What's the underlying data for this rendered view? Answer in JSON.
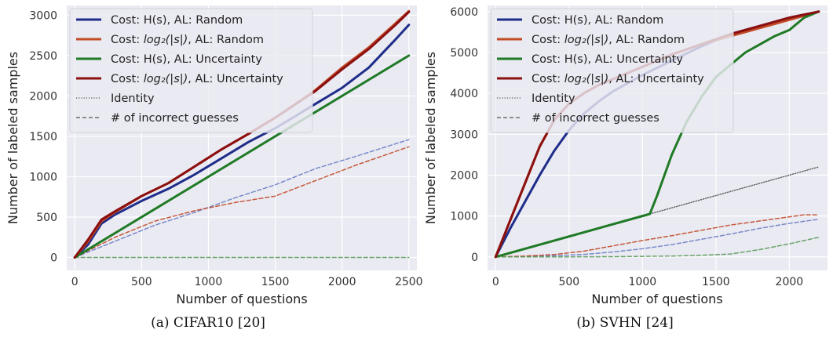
{
  "chart_data": [
    {
      "type": "line",
      "caption": "(a) CIFAR10 [20]",
      "xlabel": "Number of questions",
      "ylabel": "Number of labeled samples",
      "xlim": [
        -60,
        2560
      ],
      "ylim": [
        -160,
        3120
      ],
      "xticks": [
        0,
        500,
        1000,
        1500,
        2000,
        2500
      ],
      "yticks": [
        0,
        500,
        1000,
        1500,
        2000,
        2500,
        3000
      ],
      "grid": true,
      "legend_position": "upper-left",
      "legend": [
        {
          "pre": "Cost: H(s), AL: Random",
          "math": "",
          "post": "",
          "color": "#1f2d8a",
          "style": "solid"
        },
        {
          "pre": "Cost: ",
          "math": "log₂(|s|)",
          "post": ", AL: Random",
          "color": "#c14a27",
          "style": "solid"
        },
        {
          "pre": "Cost: H(s), AL: Uncertainty",
          "math": "",
          "post": "",
          "color": "#1f7a25",
          "style": "solid"
        },
        {
          "pre": "Cost: ",
          "math": "log₂(|s|)",
          "post": ", AL: Uncertainty",
          "color": "#8b0f0f",
          "style": "solid"
        },
        {
          "pre": "Identity",
          "math": "",
          "post": "",
          "color": "#555555",
          "style": "dotted"
        },
        {
          "pre": "# of incorrect guesses",
          "math": "",
          "post": "",
          "color": "#555555",
          "style": "dashed"
        }
      ],
      "series": [
        {
          "color": "#1f2d8a",
          "style": "solid",
          "x": [
            0,
            100,
            200,
            300,
            500,
            700,
            900,
            1100,
            1300,
            1500,
            1800,
            2000,
            2200,
            2400,
            2500
          ],
          "y": [
            0,
            160,
            420,
            530,
            700,
            850,
            1030,
            1230,
            1430,
            1600,
            1900,
            2100,
            2350,
            2700,
            2880
          ]
        },
        {
          "color": "#c14a27",
          "style": "solid",
          "x": [
            0,
            100,
            200,
            300,
            500,
            700,
            900,
            1100,
            1300,
            1500,
            1800,
            2000,
            2200,
            2400,
            2500
          ],
          "y": [
            0,
            200,
            450,
            560,
            760,
            920,
            1130,
            1340,
            1530,
            1730,
            2070,
            2350,
            2600,
            2900,
            3050
          ]
        },
        {
          "color": "#1f7a25",
          "style": "solid",
          "x": [
            0,
            2500
          ],
          "y": [
            0,
            2500
          ]
        },
        {
          "color": "#8b0f0f",
          "style": "solid",
          "x": [
            0,
            100,
            200,
            300,
            500,
            700,
            900,
            1100,
            1300,
            1500,
            1800,
            2000,
            2200,
            2400,
            2500
          ],
          "y": [
            0,
            220,
            470,
            570,
            760,
            920,
            1130,
            1340,
            1530,
            1730,
            2060,
            2330,
            2580,
            2880,
            3040
          ]
        },
        {
          "color": "#6b7fc4",
          "style": "dashed",
          "x": [
            0,
            300,
            600,
            900,
            1200,
            1500,
            1800,
            2100,
            2500
          ],
          "y": [
            0,
            200,
            400,
            560,
            740,
            900,
            1100,
            1250,
            1460
          ]
        },
        {
          "color": "#c14a27",
          "style": "dashed",
          "x": [
            0,
            300,
            600,
            900,
            1200,
            1500,
            1800,
            2100,
            2500
          ],
          "y": [
            0,
            250,
            450,
            580,
            680,
            760,
            950,
            1140,
            1370
          ]
        },
        {
          "color": "#5a9a5a",
          "style": "dashed",
          "x": [
            0,
            2500
          ],
          "y": [
            0,
            0
          ]
        }
      ]
    },
    {
      "type": "line",
      "caption": "(b) SVHN [24]",
      "xlabel": "Number of questions",
      "ylabel": "Number of labeled samples",
      "xlim": [
        -55,
        2260
      ],
      "ylim": [
        -330,
        6150
      ],
      "xticks": [
        0,
        500,
        1000,
        1500,
        2000
      ],
      "yticks": [
        0,
        1000,
        2000,
        3000,
        4000,
        5000,
        6000
      ],
      "grid": true,
      "legend_position": "upper-left",
      "legend": [
        {
          "pre": "Cost: H(s), AL: Random",
          "math": "",
          "post": "",
          "color": "#1f2d8a",
          "style": "solid"
        },
        {
          "pre": "Cost: ",
          "math": "log₂(|s|)",
          "post": ", AL: Random",
          "color": "#c14a27",
          "style": "solid"
        },
        {
          "pre": "Cost: H(s), AL: Uncertainty",
          "math": "",
          "post": "",
          "color": "#1f7a25",
          "style": "solid"
        },
        {
          "pre": "Cost: ",
          "math": "log₂(|s|)",
          "post": ", AL: Uncertainty",
          "color": "#8b0f0f",
          "style": "solid"
        },
        {
          "pre": "Identity",
          "math": "",
          "post": "",
          "color": "#555555",
          "style": "dotted"
        },
        {
          "pre": "# of incorrect guesses",
          "math": "",
          "post": "",
          "color": "#555555",
          "style": "dashed"
        }
      ],
      "series": [
        {
          "color": "#1f2d8a",
          "style": "solid",
          "x": [
            0,
            100,
            200,
            300,
            400,
            500,
            600,
            700,
            800,
            1000,
            1200,
            1400,
            1600,
            1800,
            2000,
            2200
          ],
          "y": [
            0,
            700,
            1350,
            2000,
            2600,
            3100,
            3500,
            3800,
            4050,
            4450,
            4800,
            5150,
            5450,
            5650,
            5850,
            6000
          ]
        },
        {
          "color": "#c14a27",
          "style": "solid",
          "x": [
            0,
            100,
            200,
            300,
            400,
            500,
            600,
            700,
            800,
            1000,
            1200,
            1400,
            1600,
            1800,
            2000,
            2200
          ],
          "y": [
            0,
            900,
            1800,
            2700,
            3350,
            3750,
            4000,
            4200,
            4350,
            4650,
            4950,
            5200,
            5400,
            5600,
            5800,
            6000
          ]
        },
        {
          "color": "#1f7a25",
          "style": "solid",
          "x": [
            0,
            1050,
            1100,
            1200,
            1300,
            1400,
            1500,
            1600,
            1700,
            1800,
            1900,
            2000,
            2100,
            2200
          ],
          "y": [
            0,
            1050,
            1500,
            2500,
            3300,
            3900,
            4400,
            4700,
            5000,
            5200,
            5400,
            5550,
            5850,
            6000
          ]
        },
        {
          "color": "#8b0f0f",
          "style": "solid",
          "x": [
            0,
            100,
            200,
            300,
            400,
            500,
            600,
            700,
            800,
            1000,
            1200,
            1400,
            1600,
            1800,
            2000,
            2200
          ],
          "y": [
            0,
            900,
            1800,
            2700,
            3350,
            3750,
            4000,
            4200,
            4350,
            4650,
            4950,
            5200,
            5450,
            5650,
            5850,
            6000
          ]
        },
        {
          "color": "#555555",
          "style": "dotted",
          "x": [
            1050,
            2200
          ],
          "y": [
            1050,
            2200
          ]
        },
        {
          "color": "#6b7fc4",
          "style": "dashed",
          "x": [
            0,
            200,
            400,
            600,
            800,
            1000,
            1200,
            1400,
            1600,
            1800,
            2000,
            2200
          ],
          "y": [
            0,
            10,
            30,
            60,
            120,
            200,
            300,
            430,
            560,
            700,
            820,
            920
          ]
        },
        {
          "color": "#c14a27",
          "style": "dashed",
          "x": [
            0,
            200,
            400,
            600,
            800,
            1000,
            1200,
            1400,
            1600,
            1800,
            2000,
            2100,
            2200
          ],
          "y": [
            0,
            20,
            60,
            140,
            270,
            400,
            520,
            650,
            780,
            880,
            980,
            1030,
            1030
          ]
        },
        {
          "color": "#5a9a5a",
          "style": "dashed",
          "x": [
            0,
            400,
            800,
            1200,
            1400,
            1600,
            1800,
            2000,
            2200
          ],
          "y": [
            0,
            0,
            5,
            20,
            40,
            70,
            180,
            320,
            480
          ]
        }
      ]
    }
  ]
}
